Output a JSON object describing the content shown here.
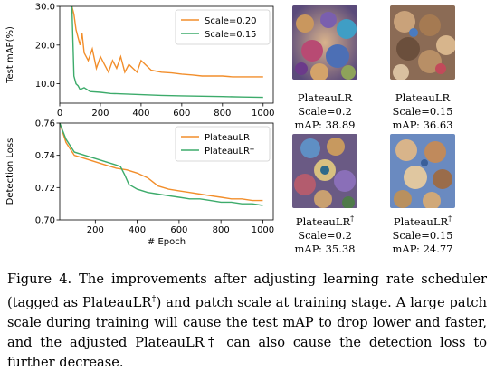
{
  "charts": [
    {
      "type": "line",
      "ylabel": "Test mAP(%)",
      "xlabel": "",
      "xlim": [
        0,
        1050
      ],
      "ylim": [
        5,
        30
      ],
      "xticks": [
        "0",
        "200",
        "400",
        "600",
        "800",
        "1000"
      ],
      "yticks": [
        "10.0",
        "20.0",
        "30.0"
      ],
      "legend_position": "top-right",
      "series": [
        {
          "name": "Scale=0.20",
          "color": "#f28e2b",
          "x": [
            60,
            70,
            80,
            90,
            100,
            110,
            120,
            140,
            160,
            180,
            200,
            220,
            240,
            260,
            280,
            300,
            320,
            340,
            360,
            380,
            400,
            450,
            500,
            550,
            600,
            650,
            700,
            750,
            800,
            850,
            900,
            950,
            1000
          ],
          "y": [
            30,
            28,
            24,
            22,
            20,
            23,
            18,
            16,
            19,
            14,
            17,
            15,
            13,
            16,
            14,
            17,
            13,
            15,
            14,
            13,
            16,
            13.5,
            13,
            12.8,
            12.5,
            12.3,
            12,
            12,
            12,
            11.8,
            11.8,
            11.8,
            11.8
          ]
        },
        {
          "name": "Scale=0.15",
          "color": "#3dab6b",
          "x": [
            60,
            70,
            80,
            90,
            100,
            120,
            150,
            200,
            250,
            300,
            400,
            500,
            600,
            700,
            800,
            900,
            1000
          ],
          "y": [
            30,
            12,
            10,
            9.5,
            8.5,
            9,
            8,
            7.8,
            7.5,
            7.4,
            7.2,
            7,
            6.9,
            6.8,
            6.7,
            6.6,
            6.5
          ]
        }
      ]
    },
    {
      "type": "line",
      "ylabel": "Detection Loss",
      "xlabel": "# Epoch",
      "xlim": [
        30,
        1050
      ],
      "ylim": [
        0.7,
        0.76
      ],
      "xticks": [
        "200",
        "400",
        "600",
        "800",
        "1000"
      ],
      "yticks": [
        "0.70",
        "0.72",
        "0.74",
        "0.76"
      ],
      "legend_position": "top-right",
      "series": [
        {
          "name": "PlateauLR",
          "color": "#f28e2b",
          "x": [
            30,
            60,
            100,
            150,
            200,
            250,
            300,
            350,
            400,
            450,
            500,
            550,
            600,
            650,
            700,
            750,
            800,
            850,
            900,
            950,
            1000
          ],
          "y": [
            0.76,
            0.748,
            0.74,
            0.738,
            0.736,
            0.734,
            0.732,
            0.731,
            0.729,
            0.726,
            0.721,
            0.719,
            0.718,
            0.717,
            0.716,
            0.715,
            0.714,
            0.713,
            0.713,
            0.712,
            0.712
          ]
        },
        {
          "name": "PlateauLR†",
          "color": "#3dab6b",
          "x": [
            30,
            60,
            100,
            150,
            200,
            250,
            300,
            320,
            340,
            360,
            400,
            450,
            500,
            550,
            600,
            650,
            700,
            750,
            800,
            850,
            900,
            950,
            1000
          ],
          "y": [
            0.76,
            0.75,
            0.742,
            0.74,
            0.738,
            0.736,
            0.734,
            0.733,
            0.728,
            0.722,
            0.719,
            0.717,
            0.716,
            0.715,
            0.714,
            0.713,
            0.713,
            0.712,
            0.711,
            0.711,
            0.71,
            0.71,
            0.709
          ]
        }
      ]
    }
  ],
  "thumbnails": [
    {
      "name_text": "PlateauLR",
      "sup": "",
      "scale": "Scale=0.2",
      "map": "mAP: 38.89"
    },
    {
      "name_text": "PlateauLR",
      "sup": "",
      "scale": "Scale=0.15",
      "map": "mAP: 36.63"
    },
    {
      "name_text": "PlateauLR",
      "sup": "†",
      "scale": "Scale=0.2",
      "map": "mAP: 35.38"
    },
    {
      "name_text": "PlateauLR",
      "sup": "†",
      "scale": "Scale=0.15",
      "map": "mAP: 24.77"
    }
  ],
  "caption": {
    "part1": "Figure 4.  The improvements after adjusting learning rate scheduler (tagged as PlateauLR",
    "sup": "†",
    "part2": ") and patch scale at training stage.  A large patch scale during training will cause the test mAP to drop lower and faster, and the adjusted PlateauLR† can also cause the detection loss to further decrease."
  }
}
